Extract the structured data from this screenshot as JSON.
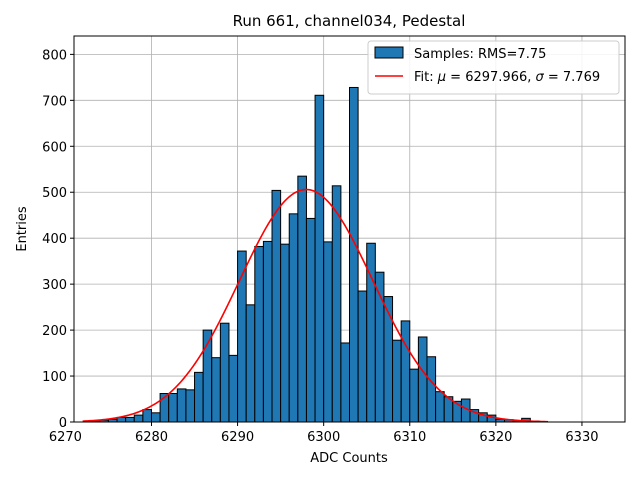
{
  "chart_data": {
    "type": "bar",
    "title": "Run 661, channel034, Pedestal",
    "xlabel": "ADC Counts",
    "ylabel": "Entries",
    "xlim": [
      6271,
      6335
    ],
    "ylim": [
      0,
      840
    ],
    "xticks": [
      6270,
      6280,
      6290,
      6300,
      6310,
      6320,
      6330
    ],
    "yticks": [
      0,
      100,
      200,
      300,
      400,
      500,
      600,
      700,
      800
    ],
    "grid": true,
    "legend_position": "top-right",
    "colors": {
      "bars": "#1f77b4",
      "fit": "#ff0000"
    },
    "bin_width": 1,
    "histogram": {
      "name": "Samples: RMS=7.75",
      "bins": [
        [
          6273,
          2
        ],
        [
          6274,
          4
        ],
        [
          6275,
          6
        ],
        [
          6276,
          10
        ],
        [
          6277,
          10
        ],
        [
          6278,
          15
        ],
        [
          6279,
          27
        ],
        [
          6280,
          20
        ],
        [
          6281,
          62
        ],
        [
          6282,
          62
        ],
        [
          6283,
          72
        ],
        [
          6284,
          70
        ],
        [
          6285,
          108
        ],
        [
          6286,
          200
        ],
        [
          6287,
          140
        ],
        [
          6288,
          215
        ],
        [
          6289,
          145
        ],
        [
          6290,
          372
        ],
        [
          6291,
          255
        ],
        [
          6292,
          382
        ],
        [
          6293,
          393
        ],
        [
          6294,
          504
        ],
        [
          6295,
          387
        ],
        [
          6296,
          453
        ],
        [
          6297,
          535
        ],
        [
          6298,
          443
        ],
        [
          6299,
          711
        ],
        [
          6300,
          392
        ],
        [
          6301,
          514
        ],
        [
          6302,
          172
        ],
        [
          6303,
          728
        ],
        [
          6304,
          285
        ],
        [
          6305,
          389
        ],
        [
          6306,
          326
        ],
        [
          6307,
          273
        ],
        [
          6308,
          178
        ],
        [
          6309,
          220
        ],
        [
          6310,
          115
        ],
        [
          6311,
          185
        ],
        [
          6312,
          142
        ],
        [
          6313,
          66
        ],
        [
          6314,
          55
        ],
        [
          6315,
          45
        ],
        [
          6316,
          50
        ],
        [
          6317,
          27
        ],
        [
          6318,
          20
        ],
        [
          6319,
          15
        ],
        [
          6320,
          6
        ],
        [
          6321,
          5
        ],
        [
          6322,
          2
        ],
        [
          6323,
          8
        ],
        [
          6324,
          2
        ],
        [
          6325,
          1
        ]
      ]
    },
    "fit": {
      "name_prefix": "Fit: ",
      "mu_symbol": "μ",
      "mu_value": " = 6297.966, ",
      "sigma_symbol": "σ",
      "sigma_value": " = 7.769",
      "mu": 6297.966,
      "sigma": 7.769,
      "amplitude": 506,
      "x_range": [
        6272,
        6326
      ]
    }
  }
}
